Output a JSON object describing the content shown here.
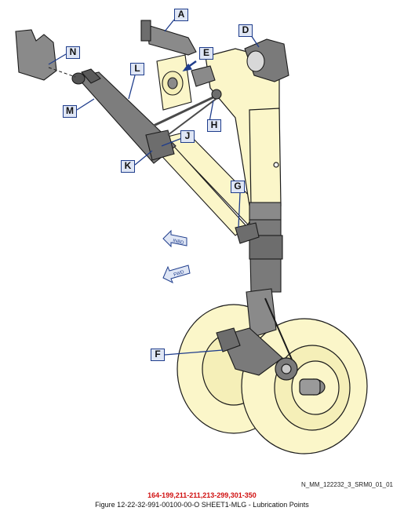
{
  "figure": {
    "reference_code": "N_MM_122232_3_SRM0_01_01",
    "effectivity": "164-199,211-211,213-299,301-350",
    "caption": "Figure 12-22-32-991-00100-00-O SHEET1-MLG - Lubrication Points"
  },
  "callouts": [
    {
      "id": "A",
      "label": "A"
    },
    {
      "id": "D",
      "label": "D"
    },
    {
      "id": "E",
      "label": "E"
    },
    {
      "id": "N",
      "label": "N"
    },
    {
      "id": "L",
      "label": "L"
    },
    {
      "id": "M",
      "label": "M"
    },
    {
      "id": "H",
      "label": "H"
    },
    {
      "id": "J",
      "label": "J"
    },
    {
      "id": "K",
      "label": "K"
    },
    {
      "id": "G",
      "label": "G"
    },
    {
      "id": "F",
      "label": "F"
    }
  ],
  "direction_arrows": [
    {
      "id": "inbd",
      "label": "INBD"
    },
    {
      "id": "fwd",
      "label": "FWD"
    }
  ],
  "colors": {
    "leg_fill": "#fbf6c9",
    "outline": "#1a1a1a",
    "dark_part": "#6d6d6d",
    "callout_border": "#1f3d8c",
    "callout_fill": "#dfe6f5",
    "pointer_arrow": "#1f3d8c",
    "arrow_fill": "#dfe6f5",
    "effectivity_text": "#d01010"
  }
}
